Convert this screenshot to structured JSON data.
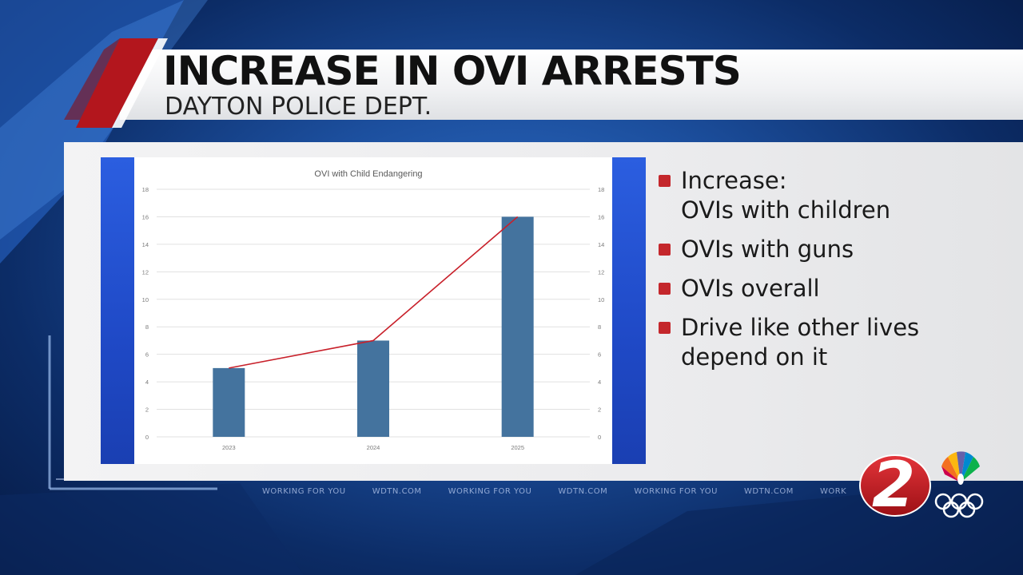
{
  "header": {
    "headline": "INCREASE IN OVI ARRESTS",
    "subhead": "DAYTON POLICE DEPT."
  },
  "bullets": [
    {
      "text": "Increase:\nOVIs with children"
    },
    {
      "text": "OVIs with guns"
    },
    {
      "text": "OVIs overall"
    },
    {
      "text": "Drive like other lives\ndepend on it"
    }
  ],
  "ticker": [
    "WORKING FOR YOU",
    "WDTN.COM",
    "WORKING FOR YOU",
    "WDTN.COM",
    "WORKING FOR YOU",
    "WDTN.COM",
    "WORKI"
  ],
  "logo": {
    "number": "2",
    "icon": "nbc-peacock-icon",
    "icon2": "olympic-rings-icon"
  },
  "colors": {
    "accent_red": "#c4272c",
    "bar": "#44739e",
    "trend_line": "#c8202a",
    "band_blue": "#1f49c6"
  },
  "chart_data": {
    "type": "bar",
    "title": "OVI with Child Endangering",
    "categories": [
      "2023",
      "2024",
      "2025"
    ],
    "values": [
      5,
      7,
      16
    ],
    "trend_line": [
      5,
      7,
      16
    ],
    "ylim": [
      0,
      18
    ],
    "yticks": [
      0,
      2,
      4,
      6,
      8,
      10,
      12,
      14,
      16,
      18
    ],
    "secondary_yticks": [
      0,
      2,
      4,
      6,
      8,
      10,
      12,
      14,
      16,
      18
    ],
    "grid": true,
    "legend": "none"
  }
}
